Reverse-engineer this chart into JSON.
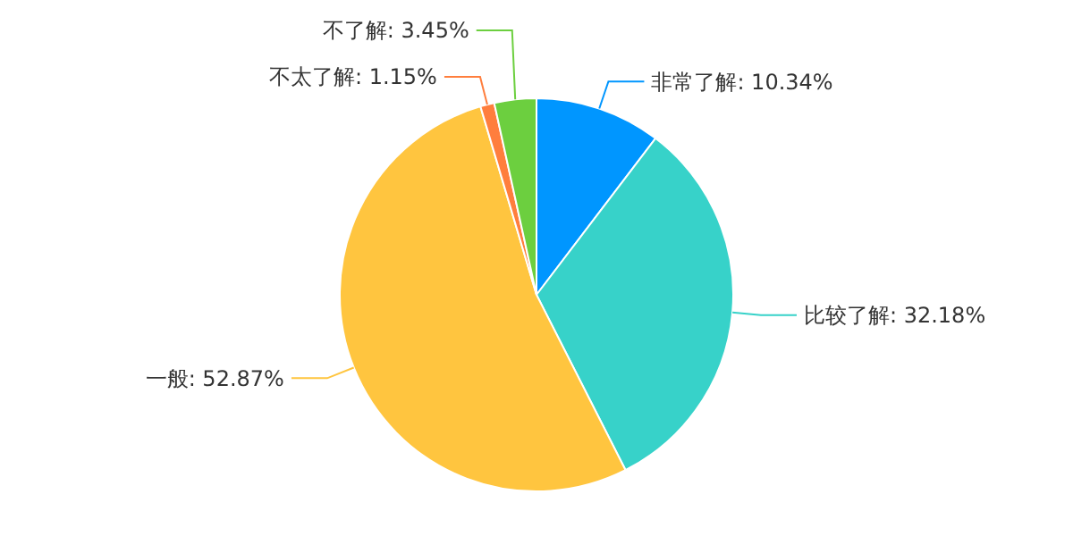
{
  "chart_data": {
    "type": "pie",
    "categories": [
      "非常了解",
      "比较了解",
      "一般",
      "不太了解",
      "不了解"
    ],
    "values": [
      10.34,
      32.18,
      52.87,
      1.15,
      3.45
    ],
    "value_labels": [
      "10.34%",
      "32.18%",
      "52.87%",
      "1.15%",
      "3.45%"
    ],
    "colors": [
      "#0096ff",
      "#37d2c9",
      "#ffc53f",
      "#ff7e3d",
      "#6ccf3f"
    ]
  }
}
